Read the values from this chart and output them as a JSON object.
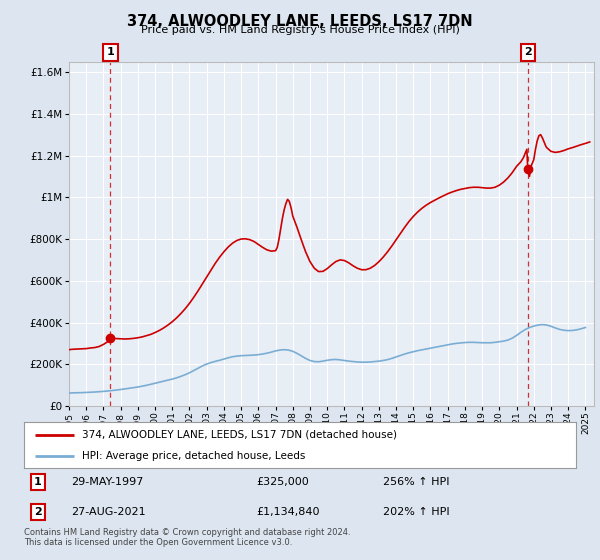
{
  "title": "374, ALWOODLEY LANE, LEEDS, LS17 7DN",
  "subtitle": "Price paid vs. HM Land Registry's House Price Index (HPI)",
  "legend_line1": "374, ALWOODLEY LANE, LEEDS, LS17 7DN (detached house)",
  "legend_line2": "HPI: Average price, detached house, Leeds",
  "point1_date": "29-MAY-1997",
  "point1_price": "£325,000",
  "point1_hpi": "256% ↑ HPI",
  "point1_year": 1997.41,
  "point1_value": 325000,
  "point2_date": "27-AUG-2021",
  "point2_price": "£1,134,840",
  "point2_hpi": "202% ↑ HPI",
  "point2_year": 2021.65,
  "point2_value": 1134840,
  "footer": "Contains HM Land Registry data © Crown copyright and database right 2024.\nThis data is licensed under the Open Government Licence v3.0.",
  "house_color": "#cc0000",
  "hpi_color": "#7aadd4",
  "background_color": "#dde6f0",
  "plot_bg_color": "#e8eef6",
  "ylim": [
    0,
    1650000
  ],
  "xlim_start": 1995.0,
  "xlim_end": 2025.5,
  "hpi_data": [
    [
      1995.0,
      62000
    ],
    [
      1995.25,
      63000
    ],
    [
      1995.5,
      63500
    ],
    [
      1995.75,
      64000
    ],
    [
      1996.0,
      65000
    ],
    [
      1996.25,
      66000
    ],
    [
      1996.5,
      67000
    ],
    [
      1996.75,
      68500
    ],
    [
      1997.0,
      70000
    ],
    [
      1997.25,
      72000
    ],
    [
      1997.5,
      74000
    ],
    [
      1997.75,
      76500
    ],
    [
      1998.0,
      79000
    ],
    [
      1998.25,
      82000
    ],
    [
      1998.5,
      85000
    ],
    [
      1998.75,
      88000
    ],
    [
      1999.0,
      91000
    ],
    [
      1999.25,
      95000
    ],
    [
      1999.5,
      99000
    ],
    [
      1999.75,
      104000
    ],
    [
      2000.0,
      109000
    ],
    [
      2000.25,
      114000
    ],
    [
      2000.5,
      119000
    ],
    [
      2000.75,
      124000
    ],
    [
      2001.0,
      129000
    ],
    [
      2001.25,
      135000
    ],
    [
      2001.5,
      142000
    ],
    [
      2001.75,
      150000
    ],
    [
      2002.0,
      159000
    ],
    [
      2002.25,
      170000
    ],
    [
      2002.5,
      181000
    ],
    [
      2002.75,
      192000
    ],
    [
      2003.0,
      201000
    ],
    [
      2003.25,
      208000
    ],
    [
      2003.5,
      214000
    ],
    [
      2003.75,
      219000
    ],
    [
      2004.0,
      225000
    ],
    [
      2004.25,
      231000
    ],
    [
      2004.5,
      236000
    ],
    [
      2004.75,
      239000
    ],
    [
      2005.0,
      241000
    ],
    [
      2005.25,
      242000
    ],
    [
      2005.5,
      243000
    ],
    [
      2005.75,
      244000
    ],
    [
      2006.0,
      246000
    ],
    [
      2006.25,
      249000
    ],
    [
      2006.5,
      253000
    ],
    [
      2006.75,
      258000
    ],
    [
      2007.0,
      264000
    ],
    [
      2007.25,
      268000
    ],
    [
      2007.5,
      270000
    ],
    [
      2007.75,
      268000
    ],
    [
      2008.0,
      262000
    ],
    [
      2008.25,
      252000
    ],
    [
      2008.5,
      240000
    ],
    [
      2008.75,
      228000
    ],
    [
      2009.0,
      218000
    ],
    [
      2009.25,
      213000
    ],
    [
      2009.5,
      212000
    ],
    [
      2009.75,
      215000
    ],
    [
      2010.0,
      219000
    ],
    [
      2010.25,
      222000
    ],
    [
      2010.5,
      223000
    ],
    [
      2010.75,
      221000
    ],
    [
      2011.0,
      218000
    ],
    [
      2011.25,
      215000
    ],
    [
      2011.5,
      213000
    ],
    [
      2011.75,
      211000
    ],
    [
      2012.0,
      210000
    ],
    [
      2012.25,
      210000
    ],
    [
      2012.5,
      211000
    ],
    [
      2012.75,
      213000
    ],
    [
      2013.0,
      215000
    ],
    [
      2013.25,
      218000
    ],
    [
      2013.5,
      222000
    ],
    [
      2013.75,
      228000
    ],
    [
      2014.0,
      235000
    ],
    [
      2014.25,
      242000
    ],
    [
      2014.5,
      249000
    ],
    [
      2014.75,
      255000
    ],
    [
      2015.0,
      260000
    ],
    [
      2015.25,
      265000
    ],
    [
      2015.5,
      269000
    ],
    [
      2015.75,
      273000
    ],
    [
      2016.0,
      277000
    ],
    [
      2016.25,
      281000
    ],
    [
      2016.5,
      285000
    ],
    [
      2016.75,
      289000
    ],
    [
      2017.0,
      293000
    ],
    [
      2017.25,
      297000
    ],
    [
      2017.5,
      300000
    ],
    [
      2017.75,
      302000
    ],
    [
      2018.0,
      304000
    ],
    [
      2018.25,
      305000
    ],
    [
      2018.5,
      305000
    ],
    [
      2018.75,
      304000
    ],
    [
      2019.0,
      303000
    ],
    [
      2019.25,
      303000
    ],
    [
      2019.5,
      303000
    ],
    [
      2019.75,
      305000
    ],
    [
      2020.0,
      308000
    ],
    [
      2020.25,
      311000
    ],
    [
      2020.5,
      316000
    ],
    [
      2020.75,
      325000
    ],
    [
      2021.0,
      338000
    ],
    [
      2021.25,
      353000
    ],
    [
      2021.5,
      366000
    ],
    [
      2021.75,
      376000
    ],
    [
      2022.0,
      383000
    ],
    [
      2022.25,
      388000
    ],
    [
      2022.5,
      390000
    ],
    [
      2022.75,
      388000
    ],
    [
      2023.0,
      382000
    ],
    [
      2023.25,
      374000
    ],
    [
      2023.5,
      367000
    ],
    [
      2023.75,
      363000
    ],
    [
      2024.0,
      361000
    ],
    [
      2024.25,
      362000
    ],
    [
      2024.5,
      365000
    ],
    [
      2024.75,
      370000
    ],
    [
      2025.0,
      376000
    ]
  ],
  "house_data": [
    [
      1995.0,
      270000
    ],
    [
      1995.25,
      272000
    ],
    [
      1995.5,
      273000
    ],
    [
      1995.75,
      274000
    ],
    [
      1996.0,
      275000
    ],
    [
      1996.25,
      278000
    ],
    [
      1996.5,
      280000
    ],
    [
      1996.75,
      285000
    ],
    [
      1997.0,
      295000
    ],
    [
      1997.25,
      308000
    ],
    [
      1997.41,
      325000
    ],
    [
      1997.5,
      324000
    ],
    [
      1997.75,
      323000
    ],
    [
      1998.0,
      322000
    ],
    [
      1998.25,
      321000
    ],
    [
      1998.5,
      322000
    ],
    [
      1998.75,
      324000
    ],
    [
      1999.0,
      327000
    ],
    [
      1999.25,
      331000
    ],
    [
      1999.5,
      337000
    ],
    [
      1999.75,
      343000
    ],
    [
      2000.0,
      352000
    ],
    [
      2000.25,
      362000
    ],
    [
      2000.5,
      374000
    ],
    [
      2000.75,
      388000
    ],
    [
      2001.0,
      404000
    ],
    [
      2001.25,
      422000
    ],
    [
      2001.5,
      443000
    ],
    [
      2001.75,
      466000
    ],
    [
      2002.0,
      492000
    ],
    [
      2002.25,
      521000
    ],
    [
      2002.5,
      552000
    ],
    [
      2002.75,
      585000
    ],
    [
      2003.0,
      619000
    ],
    [
      2003.25,
      652000
    ],
    [
      2003.5,
      684000
    ],
    [
      2003.75,
      713000
    ],
    [
      2004.0,
      739000
    ],
    [
      2004.25,
      762000
    ],
    [
      2004.5,
      780000
    ],
    [
      2004.75,
      793000
    ],
    [
      2005.0,
      800000
    ],
    [
      2005.25,
      801000
    ],
    [
      2005.5,
      797000
    ],
    [
      2005.75,
      788000
    ],
    [
      2006.0,
      774000
    ],
    [
      2006.25,
      760000
    ],
    [
      2006.5,
      748000
    ],
    [
      2006.75,
      742000
    ],
    [
      2007.0,
      744000
    ],
    [
      2007.1,
      760000
    ],
    [
      2007.2,
      800000
    ],
    [
      2007.3,
      850000
    ],
    [
      2007.4,
      900000
    ],
    [
      2007.5,
      940000
    ],
    [
      2007.6,
      970000
    ],
    [
      2007.7,
      990000
    ],
    [
      2007.8,
      980000
    ],
    [
      2007.9,
      950000
    ],
    [
      2008.0,
      910000
    ],
    [
      2008.25,
      855000
    ],
    [
      2008.5,
      795000
    ],
    [
      2008.75,
      738000
    ],
    [
      2009.0,
      692000
    ],
    [
      2009.25,
      660000
    ],
    [
      2009.5,
      644000
    ],
    [
      2009.75,
      645000
    ],
    [
      2010.0,
      658000
    ],
    [
      2010.25,
      676000
    ],
    [
      2010.5,
      692000
    ],
    [
      2010.75,
      700000
    ],
    [
      2011.0,
      697000
    ],
    [
      2011.25,
      686000
    ],
    [
      2011.5,
      672000
    ],
    [
      2011.75,
      660000
    ],
    [
      2012.0,
      653000
    ],
    [
      2012.25,
      653000
    ],
    [
      2012.5,
      660000
    ],
    [
      2012.75,
      673000
    ],
    [
      2013.0,
      691000
    ],
    [
      2013.25,
      713000
    ],
    [
      2013.5,
      738000
    ],
    [
      2013.75,
      766000
    ],
    [
      2014.0,
      796000
    ],
    [
      2014.25,
      826000
    ],
    [
      2014.5,
      856000
    ],
    [
      2014.75,
      884000
    ],
    [
      2015.0,
      908000
    ],
    [
      2015.25,
      929000
    ],
    [
      2015.5,
      947000
    ],
    [
      2015.75,
      962000
    ],
    [
      2016.0,
      975000
    ],
    [
      2016.25,
      986000
    ],
    [
      2016.5,
      997000
    ],
    [
      2016.75,
      1007000
    ],
    [
      2017.0,
      1017000
    ],
    [
      2017.25,
      1025000
    ],
    [
      2017.5,
      1032000
    ],
    [
      2017.75,
      1038000
    ],
    [
      2018.0,
      1042000
    ],
    [
      2018.25,
      1046000
    ],
    [
      2018.5,
      1048000
    ],
    [
      2018.75,
      1048000
    ],
    [
      2019.0,
      1046000
    ],
    [
      2019.25,
      1044000
    ],
    [
      2019.5,
      1044000
    ],
    [
      2019.75,
      1048000
    ],
    [
      2020.0,
      1058000
    ],
    [
      2020.25,
      1073000
    ],
    [
      2020.5,
      1093000
    ],
    [
      2020.75,
      1118000
    ],
    [
      2021.0,
      1148000
    ],
    [
      2021.25,
      1170000
    ],
    [
      2021.4,
      1190000
    ],
    [
      2021.5,
      1210000
    ],
    [
      2021.6,
      1230000
    ],
    [
      2021.65,
      1134840
    ],
    [
      2021.75,
      1100000
    ],
    [
      2021.85,
      1150000
    ],
    [
      2022.0,
      1180000
    ],
    [
      2022.1,
      1230000
    ],
    [
      2022.2,
      1270000
    ],
    [
      2022.3,
      1295000
    ],
    [
      2022.4,
      1300000
    ],
    [
      2022.5,
      1285000
    ],
    [
      2022.6,
      1265000
    ],
    [
      2022.7,
      1245000
    ],
    [
      2022.75,
      1238000
    ],
    [
      2023.0,
      1220000
    ],
    [
      2023.25,
      1215000
    ],
    [
      2023.5,
      1218000
    ],
    [
      2023.75,
      1224000
    ],
    [
      2024.0,
      1232000
    ],
    [
      2024.25,
      1238000
    ],
    [
      2024.5,
      1245000
    ],
    [
      2024.75,
      1252000
    ],
    [
      2025.0,
      1258000
    ],
    [
      2025.25,
      1265000
    ]
  ]
}
